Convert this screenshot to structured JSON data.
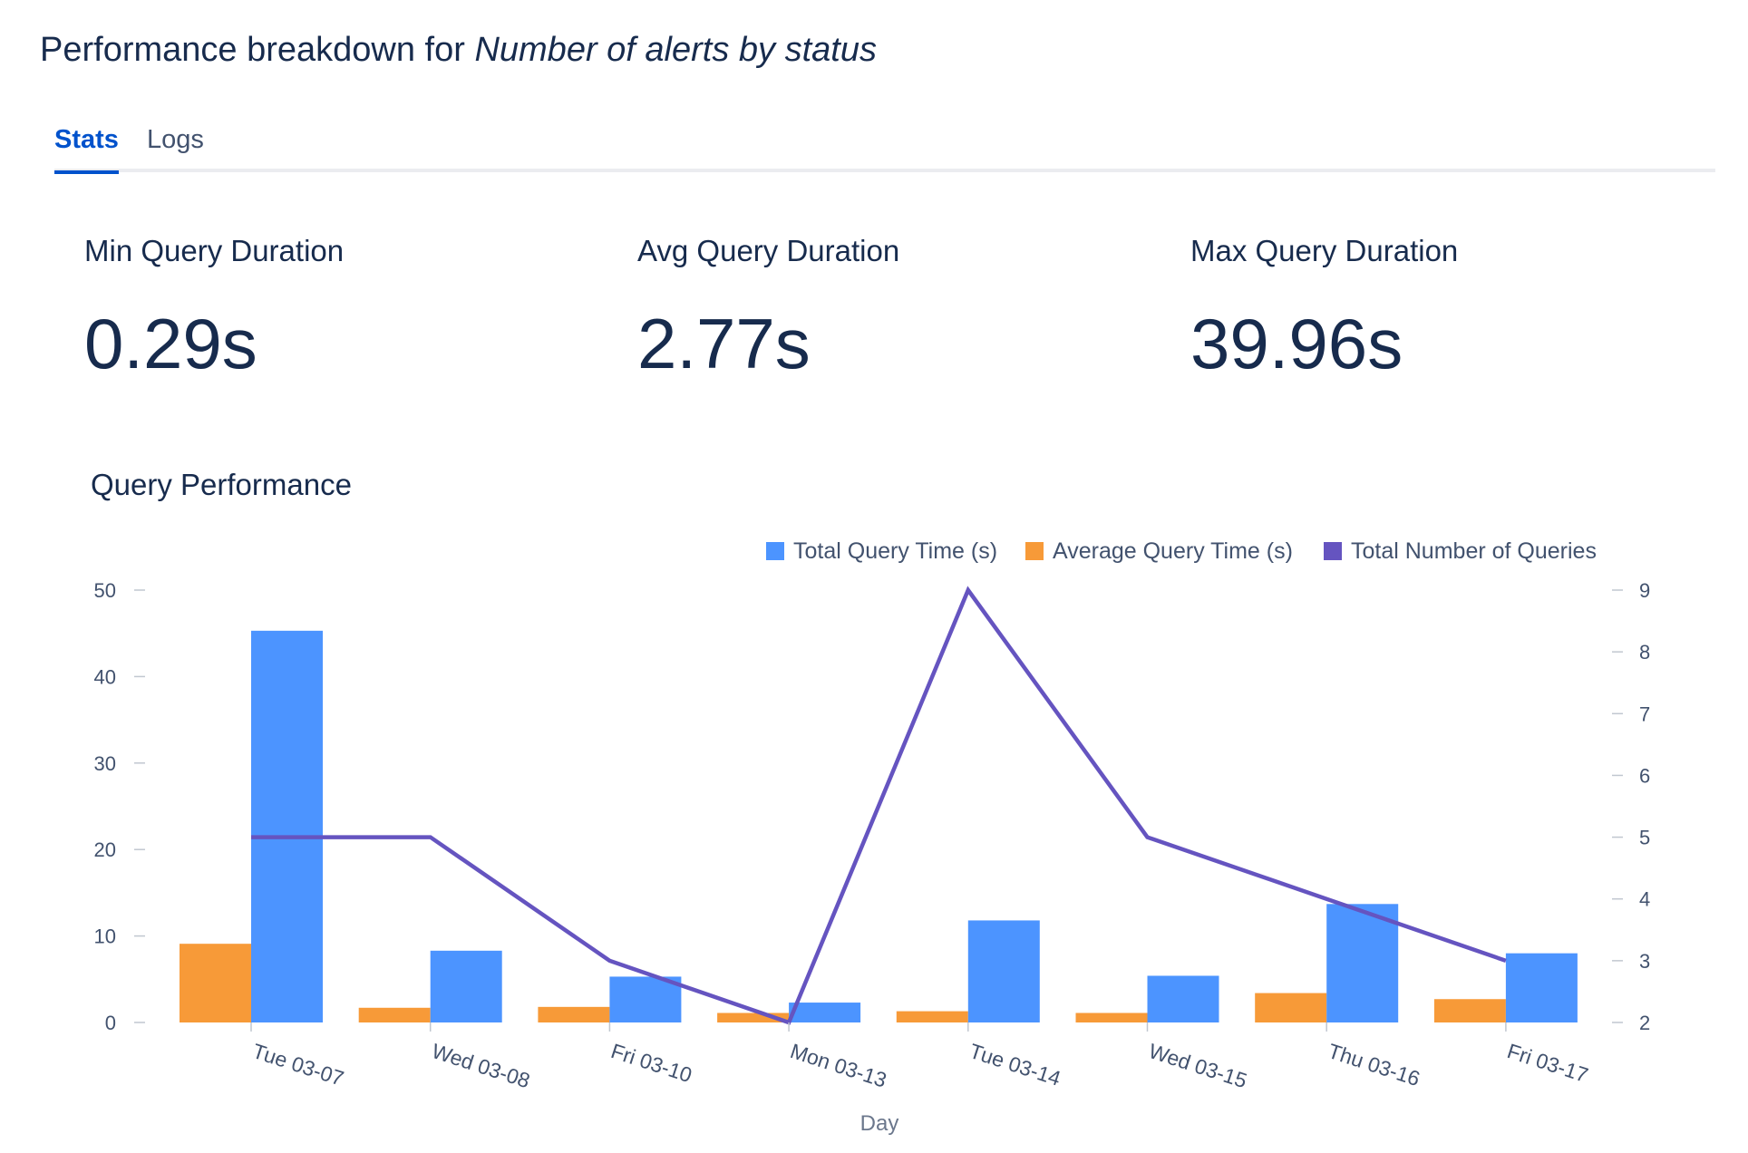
{
  "header": {
    "title_prefix": "Performance breakdown for ",
    "title_emphasis": "Number of alerts by status"
  },
  "tabs": [
    {
      "label": "Stats",
      "active": true
    },
    {
      "label": "Logs",
      "active": false
    }
  ],
  "stats": [
    {
      "label": "Min Query Duration",
      "value": "0.29s"
    },
    {
      "label": "Avg Query Duration",
      "value": "2.77s"
    },
    {
      "label": "Max Query Duration",
      "value": "39.96s"
    }
  ],
  "chart_data": {
    "type": "bar",
    "title": "Query Performance",
    "xlabel": "Day",
    "ylabel": "",
    "categories": [
      "Tue 03-07",
      "Wed 03-08",
      "Fri 03-10",
      "Mon 03-13",
      "Tue 03-14",
      "Wed 03-15",
      "Thu 03-16",
      "Fri 03-17"
    ],
    "series": [
      {
        "name": "Average Query Time (s)",
        "type": "bar",
        "axis": "left",
        "color": "#f79a38",
        "values": [
          9.1,
          1.7,
          1.8,
          1.1,
          1.3,
          1.1,
          3.4,
          2.7
        ]
      },
      {
        "name": "Total Query Time (s)",
        "type": "bar",
        "axis": "left",
        "color": "#4c94ff",
        "values": [
          45.3,
          8.3,
          5.3,
          2.3,
          11.8,
          5.4,
          13.7,
          8.0
        ]
      },
      {
        "name": "Total Number of Queries",
        "type": "line",
        "axis": "right",
        "color": "#6554c0",
        "values": [
          5,
          5,
          3,
          2,
          9,
          5,
          4,
          3
        ]
      }
    ],
    "legend_order": [
      "Total Query Time (s)",
      "Average Query Time (s)",
      "Total Number of Queries"
    ],
    "legend_position": "top-right",
    "ylim": [
      0,
      50
    ],
    "y_ticks": [
      0,
      10,
      20,
      30,
      40,
      50
    ],
    "y2lim": [
      2,
      9
    ],
    "y2_ticks": [
      2,
      3,
      4,
      5,
      6,
      7,
      8,
      9
    ],
    "grid": false
  }
}
